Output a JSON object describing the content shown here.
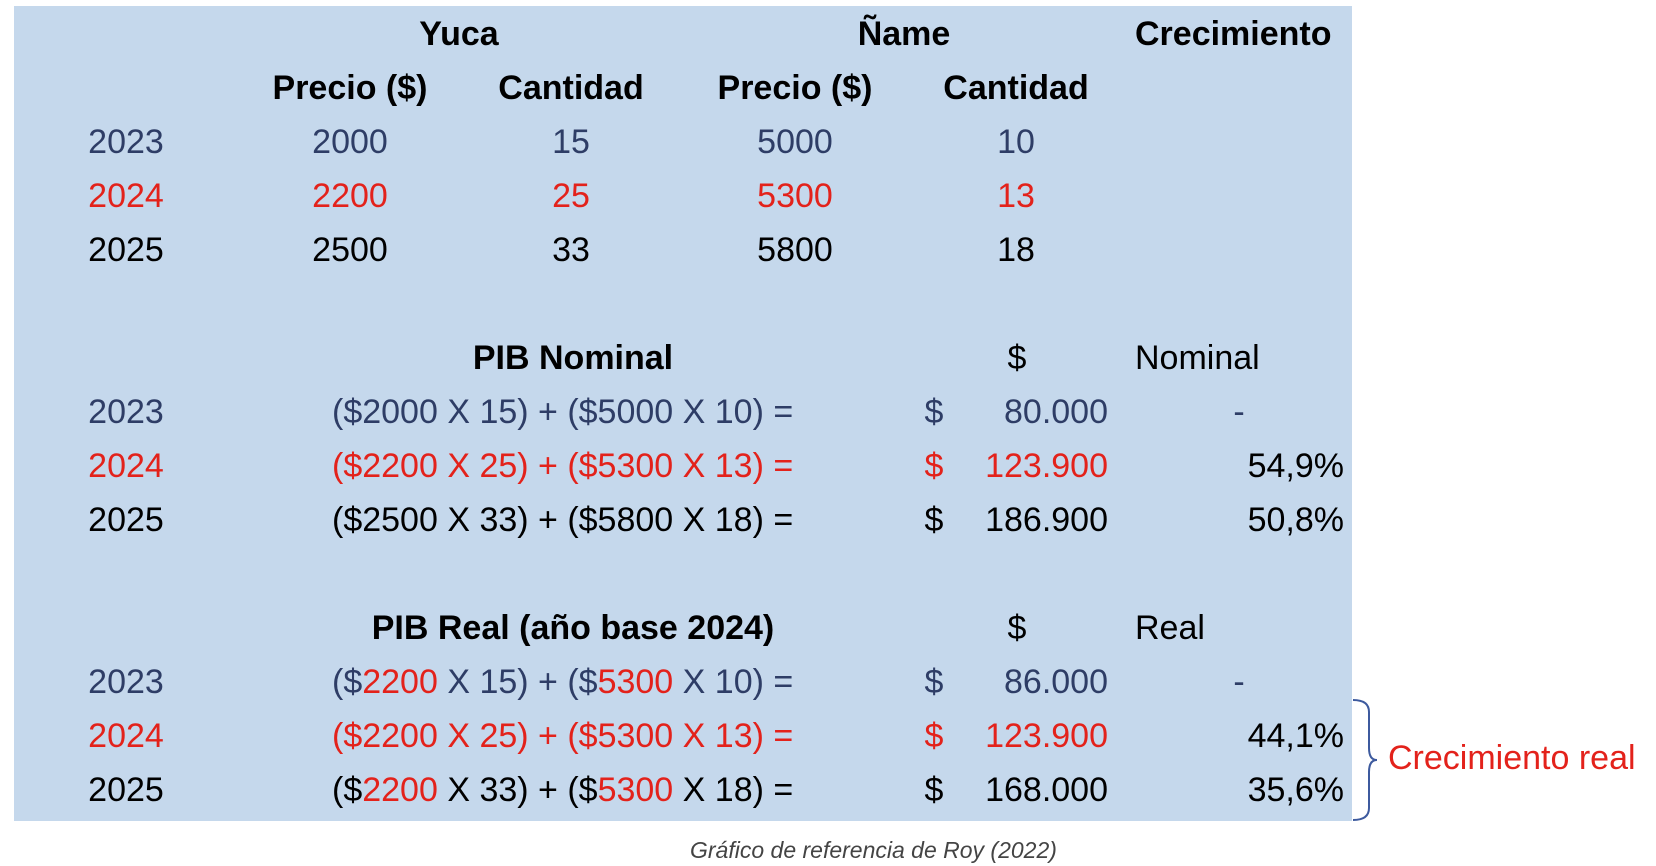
{
  "colors": {
    "panel_bg": "#c5d8ec",
    "year_2023": "#2e3d66",
    "year_2024": "#e3221b",
    "year_2025": "#000000",
    "brace": "#3d5a9e",
    "annotation": "#e3221b"
  },
  "header": {
    "yuca": "Yuca",
    "name": "Ñame",
    "crecimiento": "Crecimiento",
    "precio": "Precio ($)",
    "cantidad": "Cantidad"
  },
  "data_rows": [
    {
      "year": "2023",
      "yuca_precio": "2000",
      "yuca_cantidad": "15",
      "name_precio": "5000",
      "name_cantidad": "10"
    },
    {
      "year": "2024",
      "yuca_precio": "2200",
      "yuca_cantidad": "25",
      "name_precio": "5300",
      "name_cantidad": "13"
    },
    {
      "year": "2025",
      "yuca_precio": "2500",
      "yuca_cantidad": "33",
      "name_precio": "5800",
      "name_cantidad": "18"
    }
  ],
  "nominal": {
    "title": "PIB Nominal",
    "currency": "$",
    "growth_header": "Nominal",
    "rows": [
      {
        "year": "2023",
        "formula": "($2000 X 15) + ($5000 X 10) =",
        "currency": "$",
        "value": "80.000",
        "growth": "-"
      },
      {
        "year": "2024",
        "formula": "($2200 X 25) + ($5300 X 13) =",
        "currency": "$",
        "value": "123.900",
        "growth": "54,9%"
      },
      {
        "year": "2025",
        "formula": "($2500 X 33) + ($5800 X 18) =",
        "currency": "$",
        "value": "186.900",
        "growth": "50,8%"
      }
    ]
  },
  "real": {
    "title": "PIB Real (año base 2024)",
    "currency": "$",
    "growth_header": "Real",
    "rows": [
      {
        "year": "2023",
        "formula": {
          "p1": "($",
          "price1": "2200",
          "p2": " X 15) + ($",
          "price2": "5300",
          "p3": " X 10) ="
        },
        "currency": "$",
        "value": "86.000",
        "growth": "-"
      },
      {
        "year": "2024",
        "formula": {
          "p1": "($",
          "price1": "2200",
          "p2": " X 25) + ($",
          "price2": "5300",
          "p3": " X 13) ="
        },
        "currency": "$",
        "value": "123.900",
        "growth": "44,1%"
      },
      {
        "year": "2025",
        "formula": {
          "p1": "($",
          "price1": "2200",
          "p2": " X 33) + ($",
          "price2": "5300",
          "p3": " X 18) ="
        },
        "currency": "$",
        "value": "168.000",
        "growth": "35,6%"
      }
    ]
  },
  "annotation": "Crecimiento real",
  "caption": "Gráfico de referencia de Roy (2022)"
}
